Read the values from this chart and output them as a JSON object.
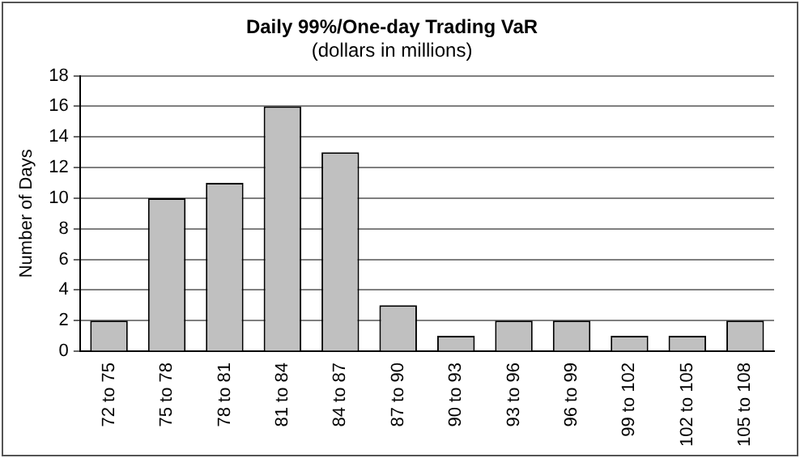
{
  "chart_data": {
    "type": "bar",
    "title": "Daily 99%/One-day Trading VaR",
    "subtitle": "(dollars in millions)",
    "ylabel": "Number of Days",
    "categories": [
      "72 to 75",
      "75 to 78",
      "78 to 81",
      "81 to 84",
      "84 to 87",
      "87 to 90",
      "90 to 93",
      "93 to 96",
      "96 to 99",
      "99 to 102",
      "102 to 105",
      "105 to 108"
    ],
    "values": [
      2,
      10,
      11,
      16,
      13,
      3,
      1,
      2,
      2,
      1,
      1,
      2
    ],
    "color": "#c0c0c0",
    "ylim": [
      0,
      18
    ],
    "yticks": [
      0,
      2,
      4,
      6,
      8,
      10,
      12,
      14,
      16,
      18
    ],
    "grid": "y",
    "legend": false
  }
}
